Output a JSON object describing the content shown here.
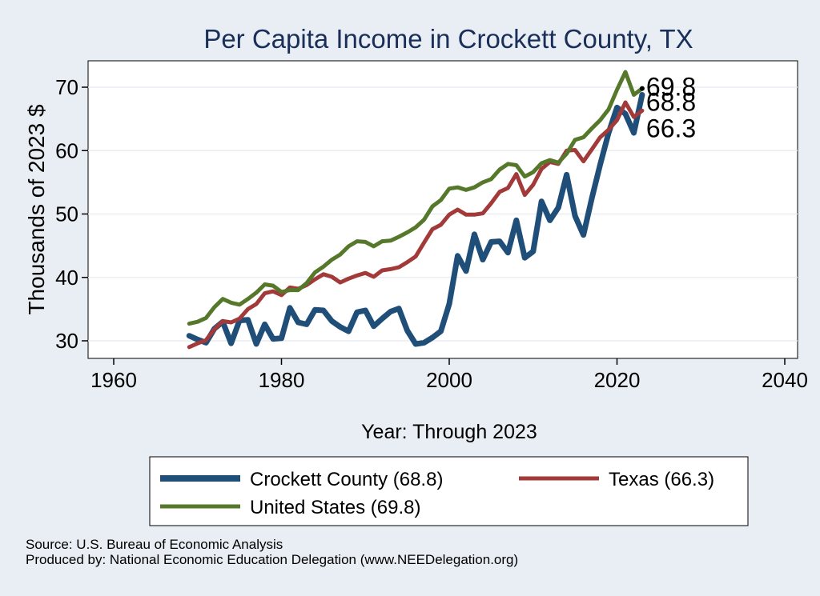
{
  "chart_data": {
    "type": "line",
    "title": "Per Capita Income in Crockett County, TX",
    "xlabel": "Year: Through 2023",
    "ylabel": "Thousands of 2023 $",
    "xlim": [
      1960,
      2040
    ],
    "ylim": [
      27.5,
      73.5
    ],
    "x_ticks": [
      "1960",
      "1980",
      "2000",
      "2020",
      "2040"
    ],
    "y_ticks": [
      "30",
      "40",
      "50",
      "60",
      "70"
    ],
    "grid": true,
    "legend_position": "bottom",
    "x": [
      1969,
      1970,
      1971,
      1972,
      1973,
      1974,
      1975,
      1976,
      1977,
      1978,
      1979,
      1980,
      1981,
      1982,
      1983,
      1984,
      1985,
      1986,
      1987,
      1988,
      1989,
      1990,
      1991,
      1992,
      1993,
      1994,
      1995,
      1996,
      1997,
      1998,
      1999,
      2000,
      2001,
      2002,
      2003,
      2004,
      2005,
      2006,
      2007,
      2008,
      2009,
      2010,
      2011,
      2012,
      2013,
      2014,
      2015,
      2016,
      2017,
      2018,
      2019,
      2020,
      2021,
      2022,
      2023
    ],
    "series": [
      {
        "name": "Crockett County",
        "legend_label": "Crockett County (68.8)",
        "end_label": "68.8",
        "color": "#1f4e79",
        "width": 7,
        "values": [
          30.8,
          30.2,
          29.7,
          31.9,
          33.0,
          29.6,
          33.2,
          33.3,
          29.5,
          32.6,
          30.3,
          30.4,
          35.2,
          32.9,
          32.6,
          34.9,
          34.8,
          33.1,
          32.2,
          31.5,
          34.5,
          34.8,
          32.3,
          33.5,
          34.6,
          35.1,
          31.6,
          29.5,
          29.7,
          30.5,
          31.5,
          35.8,
          43.4,
          41.0,
          46.8,
          42.8,
          45.6,
          45.7,
          43.9,
          49.0,
          43.1,
          44.1,
          52.0,
          49.0,
          51.0,
          56.2,
          49.7,
          46.7,
          52.5,
          57.8,
          62.8,
          66.8,
          65.8,
          62.8,
          68.8
        ]
      },
      {
        "name": "Texas",
        "legend_label": "Texas (66.3)",
        "end_label": "66.3",
        "color": "#a33a3a",
        "width": 5,
        "values": [
          29.0,
          29.6,
          30.1,
          31.8,
          33.1,
          32.9,
          33.5,
          35.0,
          35.8,
          37.5,
          37.8,
          37.2,
          38.4,
          38.2,
          38.8,
          39.7,
          40.5,
          40.1,
          39.2,
          39.8,
          40.3,
          40.7,
          40.1,
          41.1,
          41.3,
          41.6,
          42.4,
          43.3,
          45.5,
          47.6,
          48.3,
          49.9,
          50.7,
          49.9,
          49.9,
          50.1,
          51.7,
          53.5,
          54.1,
          56.3,
          53.0,
          54.6,
          57.1,
          58.2,
          57.9,
          60.0,
          60.1,
          58.3,
          60.2,
          62.1,
          63.3,
          64.8,
          67.6,
          65.3,
          66.3
        ]
      },
      {
        "name": "United States",
        "legend_label": "United States (69.8)",
        "end_label": "69.8",
        "color": "#55782b",
        "width": 5,
        "values": [
          32.7,
          33.0,
          33.6,
          35.3,
          36.6,
          36.0,
          35.7,
          36.6,
          37.6,
          38.9,
          38.7,
          37.7,
          38.0,
          38.0,
          39.1,
          40.8,
          41.7,
          42.8,
          43.6,
          44.9,
          45.7,
          45.6,
          44.9,
          45.7,
          45.8,
          46.4,
          47.1,
          47.9,
          49.1,
          51.2,
          52.2,
          54.0,
          54.2,
          53.8,
          54.2,
          55.0,
          55.5,
          57.0,
          57.9,
          57.7,
          55.9,
          56.6,
          58.0,
          58.5,
          58.1,
          59.5,
          61.7,
          62.1,
          63.5,
          64.8,
          66.5,
          69.6,
          72.4,
          68.8,
          69.8
        ]
      }
    ]
  },
  "footer": {
    "source": "Source: U.S. Bureau of Economic Analysis",
    "produced": "Produced by: National Economic Education Delegation (www.NEEDelegation.org)"
  }
}
